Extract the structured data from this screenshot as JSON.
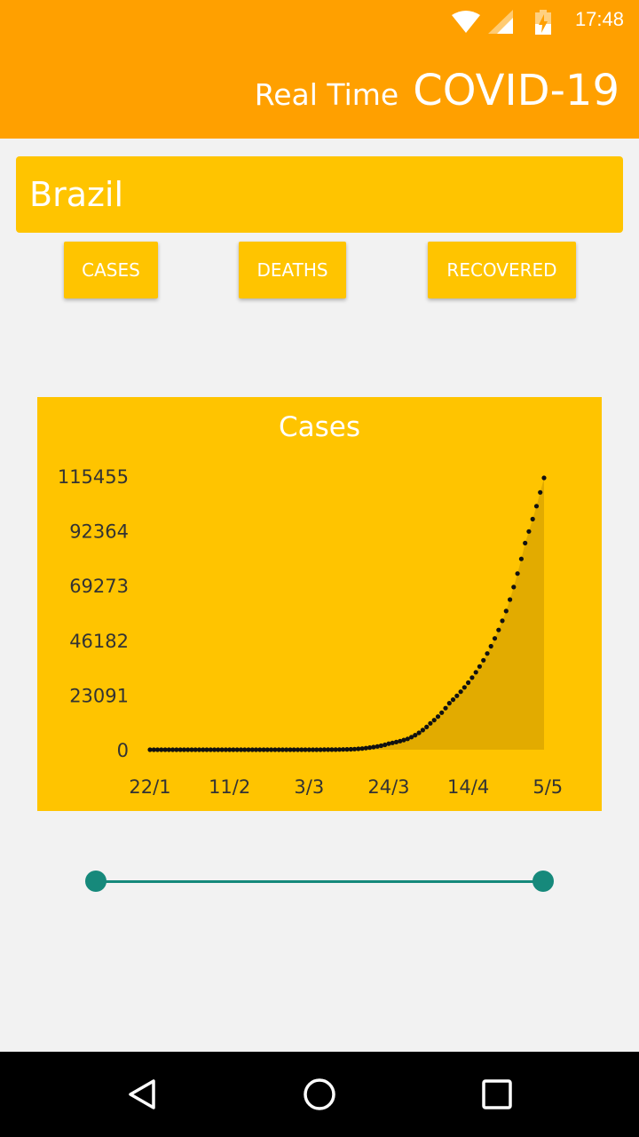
{
  "status_bar": {
    "time": "17:48",
    "icons": [
      "wifi-icon",
      "cell-signal-icon",
      "battery-charging-icon"
    ]
  },
  "app_bar": {
    "title_prefix": "Real Time",
    "title_main": "COVID-19",
    "background": "#ffa000"
  },
  "country": {
    "selected": "Brazil"
  },
  "metric_buttons": {
    "cases": "CASES",
    "deaths": "DEATHS",
    "recovered": "RECOVERED"
  },
  "chart_data": {
    "type": "area",
    "title": "Cases",
    "xlabel": "",
    "ylabel": "",
    "x_ticks": [
      "22/1",
      "11/2",
      "3/3",
      "24/3",
      "14/4",
      "5/5"
    ],
    "y_ticks": [
      0,
      23091,
      46182,
      69273,
      92364,
      115455
    ],
    "ylim": [
      0,
      115455
    ],
    "x_start": "2020-01-22",
    "x_end": "2020-05-05",
    "series": [
      {
        "name": "Brazil",
        "points": [
          {
            "x": "2020-02-26",
            "y": 1
          },
          {
            "x": "2020-03-05",
            "y": 8
          },
          {
            "x": "2020-03-10",
            "y": 34
          },
          {
            "x": "2020-03-15",
            "y": 200
          },
          {
            "x": "2020-03-20",
            "y": 904
          },
          {
            "x": "2020-03-25",
            "y": 2554
          },
          {
            "x": "2020-03-30",
            "y": 4579
          },
          {
            "x": "2020-04-05",
            "y": 11130
          },
          {
            "x": "2020-04-10",
            "y": 19638
          },
          {
            "x": "2020-04-15",
            "y": 28320
          },
          {
            "x": "2020-04-20",
            "y": 40581
          },
          {
            "x": "2020-04-25",
            "y": 58509
          },
          {
            "x": "2020-04-30",
            "y": 87187
          },
          {
            "x": "2020-05-05",
            "y": 114715
          }
        ]
      }
    ],
    "background": "#ffc400",
    "fill_color": "#e2ab00",
    "point_color": "#111111"
  },
  "date_range": {
    "start": "22/1",
    "end": "5/5",
    "accent": "#16897b"
  },
  "nav_bar": {
    "buttons": [
      "back-icon",
      "home-icon",
      "recents-icon"
    ]
  }
}
